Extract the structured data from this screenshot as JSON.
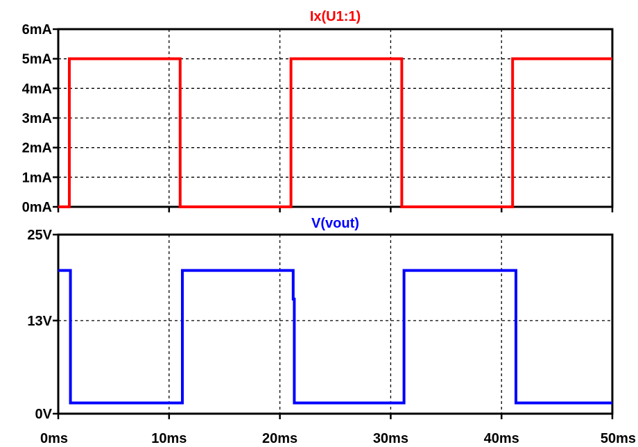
{
  "chart_data": [
    {
      "type": "line",
      "title": "Ix(U1:1)",
      "title_color": "#ff0000",
      "xlabel": "",
      "ylabel": "",
      "xlim": [
        0,
        50
      ],
      "ylim": [
        0,
        6
      ],
      "x_ticks": [
        0,
        10,
        20,
        30,
        40,
        50
      ],
      "y_ticks": [
        0,
        1,
        2,
        3,
        4,
        5,
        6
      ],
      "y_tick_labels": [
        "0mA",
        "1mA",
        "2mA",
        "3mA",
        "4mA",
        "5mA",
        "6mA"
      ],
      "grid": true,
      "series": [
        {
          "name": "Ix(U1:1)",
          "color": "#ff0000",
          "x": [
            0,
            1,
            1,
            11,
            11,
            21,
            21,
            31,
            31,
            41,
            41,
            50
          ],
          "y": [
            0,
            0,
            5,
            5,
            0,
            0,
            5,
            5,
            0,
            0,
            5,
            5
          ]
        }
      ]
    },
    {
      "type": "line",
      "title": "V(vout)",
      "title_color": "#0000ff",
      "xlabel": "",
      "ylabel": "",
      "xlim": [
        0,
        50
      ],
      "ylim": [
        0,
        25
      ],
      "x_ticks": [
        0,
        10,
        20,
        30,
        40,
        50
      ],
      "x_tick_labels": [
        "0ms",
        "10ms",
        "20ms",
        "30ms",
        "40ms",
        "50ms"
      ],
      "y_ticks": [
        0,
        13,
        25
      ],
      "y_tick_labels": [
        "0V",
        "13V",
        "25V"
      ],
      "grid": true,
      "series": [
        {
          "name": "V(vout)",
          "color": "#0000ff",
          "x": [
            0,
            1.1,
            1.1,
            11.2,
            11.2,
            21.2,
            21.2,
            21.3,
            21.3,
            31.2,
            31.2,
            41.3,
            41.3,
            50
          ],
          "y": [
            20,
            20,
            1.5,
            1.5,
            20,
            20,
            16,
            16,
            1.5,
            1.5,
            20,
            20,
            1.5,
            1.5
          ]
        }
      ]
    }
  ]
}
